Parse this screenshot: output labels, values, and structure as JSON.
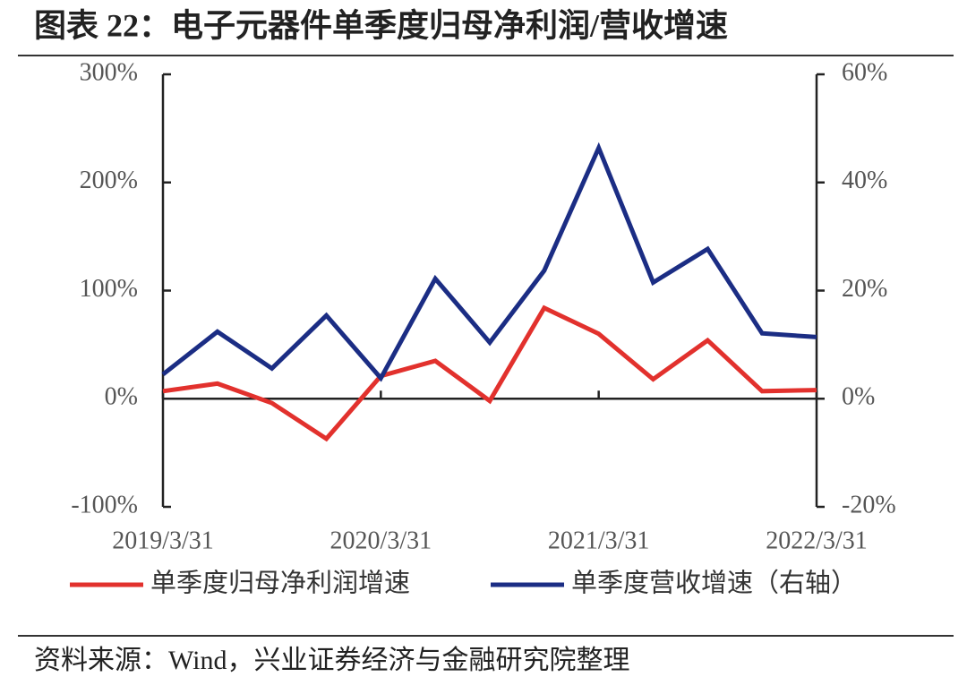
{
  "chart_data": {
    "type": "line",
    "title": "图表 22：电子元器件单季度归母净利润/营收增速",
    "categories": [
      "2019/3/31",
      null,
      null,
      null,
      "2020/3/31",
      null,
      null,
      null,
      "2021/3/31",
      null,
      null,
      null,
      "2022/3/31"
    ],
    "series": [
      {
        "name": "单季度归母净利润增速",
        "color": "#e2312d",
        "values": [
          7,
          14,
          -4,
          -37,
          21,
          35,
          -2,
          84,
          60,
          18,
          54,
          7,
          8
        ]
      },
      {
        "name": "单季度营收增速（右轴）",
        "color": "#1b2d84",
        "axis": "y2",
        "values": [
          4.5,
          12.4,
          5.6,
          15.4,
          3.8,
          22.2,
          10.4,
          23.7,
          46.4,
          21.5,
          27.7,
          12.1,
          11.4
        ]
      }
    ],
    "ylim": [
      -100,
      300
    ],
    "yticks": [
      {
        "value": -100,
        "label": "-100%"
      },
      {
        "value": 0,
        "label": "0%"
      },
      {
        "value": 100,
        "label": "100%"
      },
      {
        "value": 200,
        "label": "200%"
      },
      {
        "value": 300,
        "label": "300%"
      }
    ],
    "y2lim": [
      -20,
      60
    ],
    "y2ticks": [
      {
        "value": -20,
        "label": "-20%"
      },
      {
        "value": 0,
        "label": "0%"
      },
      {
        "value": 20,
        "label": "20%"
      },
      {
        "value": 40,
        "label": "40%"
      },
      {
        "value": 60,
        "label": "60%"
      }
    ],
    "legend": "bottom"
  },
  "source": "资料来源：Wind，兴业证券经济与金融研究院整理"
}
